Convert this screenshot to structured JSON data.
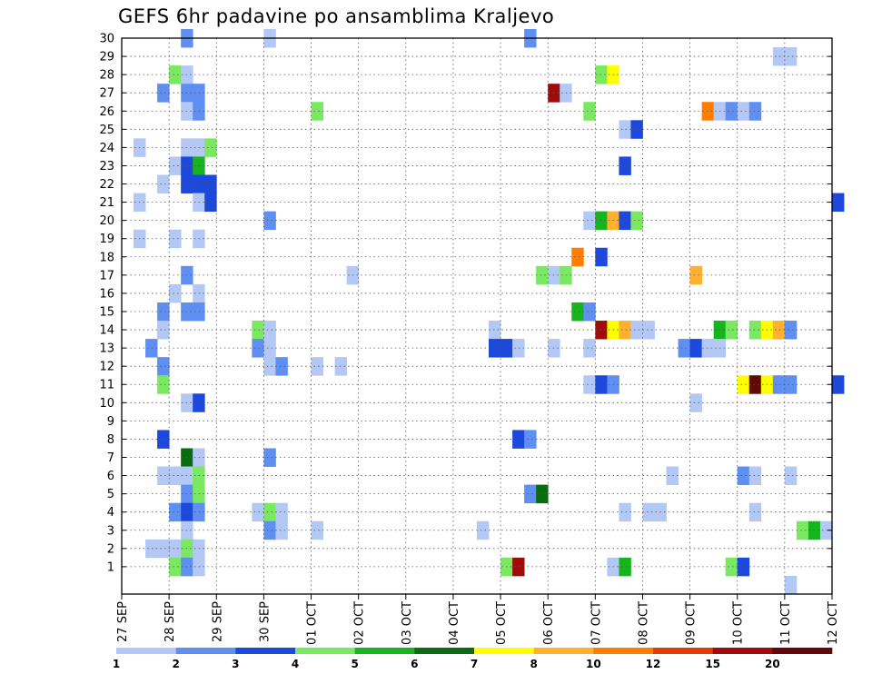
{
  "chart_data": {
    "type": "heatmap",
    "title": "GEFS 6hr padavine po ansamblima Kraljevo",
    "xlabel": "",
    "ylabel": "",
    "x_ticks": [
      "27 SEP",
      "28 SEP",
      "29 SEP",
      "30 SEP",
      "01 OCT",
      "02 OCT",
      "03 OCT",
      "04 OCT",
      "05 OCT",
      "06 OCT",
      "07 OCT",
      "08 OCT",
      "09 OCT",
      "10 OCT",
      "11 OCT",
      "12 OCT"
    ],
    "y_ticks": [
      "1",
      "2",
      "3",
      "4",
      "5",
      "6",
      "7",
      "8",
      "9",
      "10",
      "11",
      "12",
      "13",
      "14",
      "15",
      "16",
      "17",
      "18",
      "19",
      "20",
      "21",
      "22",
      "23",
      "24",
      "25",
      "26",
      "27",
      "28",
      "29",
      "30"
    ],
    "grid": true,
    "colorbar": {
      "bounds": [
        "1",
        "2",
        "3",
        "4",
        "5",
        "6",
        "7",
        "8",
        "10",
        "12",
        "15",
        "20"
      ],
      "colors": [
        "#b4c8f5",
        "#5f8ff0",
        "#1c48dc",
        "#7ae860",
        "#16b51d",
        "#0b6b10",
        "#ffff00",
        "#ffb02f",
        "#ff7d00",
        "#e43c00",
        "#a00c0c",
        "#620808"
      ]
    },
    "units": "each cell = one 6-hour step (4 per day) for one ensemble member; value = color class index 0-11",
    "cells": [
      [
        30,
        5,
        1
      ],
      [
        30,
        12,
        0
      ],
      [
        30,
        34,
        1
      ],
      [
        29,
        55,
        0
      ],
      [
        29,
        56,
        0
      ],
      [
        28,
        4,
        3
      ],
      [
        28,
        5,
        0
      ],
      [
        28,
        40,
        3
      ],
      [
        28,
        41,
        6
      ],
      [
        27,
        3,
        1
      ],
      [
        27,
        5,
        1
      ],
      [
        27,
        6,
        1
      ],
      [
        27,
        36,
        10
      ],
      [
        27,
        37,
        0
      ],
      [
        26,
        5,
        0
      ],
      [
        26,
        6,
        1
      ],
      [
        26,
        16,
        3
      ],
      [
        26,
        39,
        3
      ],
      [
        26,
        49,
        8
      ],
      [
        26,
        50,
        0
      ],
      [
        26,
        51,
        1
      ],
      [
        26,
        52,
        0
      ],
      [
        26,
        53,
        1
      ],
      [
        25,
        42,
        0
      ],
      [
        25,
        43,
        2
      ],
      [
        24,
        1,
        0
      ],
      [
        24,
        5,
        0
      ],
      [
        24,
        6,
        0
      ],
      [
        24,
        7,
        3
      ],
      [
        23,
        4,
        0
      ],
      [
        23,
        5,
        2
      ],
      [
        23,
        6,
        4
      ],
      [
        23,
        42,
        2
      ],
      [
        22,
        3,
        0
      ],
      [
        22,
        5,
        2
      ],
      [
        22,
        6,
        2
      ],
      [
        22,
        7,
        2
      ],
      [
        21,
        1,
        0
      ],
      [
        21,
        6,
        0
      ],
      [
        21,
        7,
        2
      ],
      [
        21,
        60,
        2
      ],
      [
        20,
        12,
        1
      ],
      [
        20,
        39,
        0
      ],
      [
        20,
        40,
        4
      ],
      [
        20,
        41,
        7
      ],
      [
        20,
        42,
        2
      ],
      [
        20,
        43,
        3
      ],
      [
        19,
        1,
        0
      ],
      [
        19,
        4,
        0
      ],
      [
        19,
        6,
        0
      ],
      [
        18,
        38,
        8
      ],
      [
        18,
        40,
        2
      ],
      [
        17,
        5,
        1
      ],
      [
        17,
        19,
        0
      ],
      [
        17,
        35,
        3
      ],
      [
        17,
        36,
        0
      ],
      [
        17,
        37,
        3
      ],
      [
        17,
        48,
        7
      ],
      [
        16,
        4,
        0
      ],
      [
        16,
        6,
        0
      ],
      [
        15,
        3,
        1
      ],
      [
        15,
        5,
        1
      ],
      [
        15,
        6,
        1
      ],
      [
        15,
        38,
        4
      ],
      [
        15,
        39,
        1
      ],
      [
        14,
        3,
        0
      ],
      [
        14,
        11,
        3
      ],
      [
        14,
        12,
        0
      ],
      [
        14,
        31,
        0
      ],
      [
        14,
        40,
        10
      ],
      [
        14,
        41,
        6
      ],
      [
        14,
        42,
        7
      ],
      [
        14,
        43,
        0
      ],
      [
        14,
        44,
        0
      ],
      [
        14,
        50,
        4
      ],
      [
        14,
        51,
        3
      ],
      [
        14,
        53,
        3
      ],
      [
        14,
        54,
        6
      ],
      [
        14,
        55,
        7
      ],
      [
        14,
        56,
        1
      ],
      [
        13,
        2,
        1
      ],
      [
        13,
        11,
        1
      ],
      [
        13,
        12,
        0
      ],
      [
        13,
        31,
        2
      ],
      [
        13,
        32,
        2
      ],
      [
        13,
        33,
        0
      ],
      [
        13,
        36,
        0
      ],
      [
        13,
        39,
        0
      ],
      [
        13,
        47,
        1
      ],
      [
        13,
        48,
        2
      ],
      [
        13,
        49,
        0
      ],
      [
        13,
        50,
        0
      ],
      [
        12,
        3,
        1
      ],
      [
        12,
        12,
        0
      ],
      [
        12,
        13,
        1
      ],
      [
        12,
        16,
        0
      ],
      [
        12,
        18,
        0
      ],
      [
        11,
        3,
        3
      ],
      [
        11,
        39,
        0
      ],
      [
        11,
        40,
        2
      ],
      [
        11,
        41,
        1
      ],
      [
        11,
        52,
        6
      ],
      [
        11,
        53,
        11
      ],
      [
        11,
        54,
        6
      ],
      [
        11,
        55,
        1
      ],
      [
        11,
        56,
        1
      ],
      [
        11,
        60,
        2
      ],
      [
        10,
        5,
        0
      ],
      [
        10,
        6,
        2
      ],
      [
        10,
        48,
        0
      ],
      [
        8,
        3,
        2
      ],
      [
        8,
        33,
        2
      ],
      [
        8,
        34,
        1
      ],
      [
        7,
        5,
        5
      ],
      [
        7,
        6,
        0
      ],
      [
        7,
        12,
        1
      ],
      [
        6,
        3,
        0
      ],
      [
        6,
        4,
        0
      ],
      [
        6,
        5,
        0
      ],
      [
        6,
        6,
        3
      ],
      [
        6,
        46,
        0
      ],
      [
        6,
        52,
        1
      ],
      [
        6,
        53,
        0
      ],
      [
        6,
        56,
        0
      ],
      [
        5,
        5,
        1
      ],
      [
        5,
        6,
        3
      ],
      [
        5,
        34,
        1
      ],
      [
        5,
        35,
        5
      ],
      [
        4,
        4,
        1
      ],
      [
        4,
        5,
        2
      ],
      [
        4,
        6,
        1
      ],
      [
        4,
        11,
        0
      ],
      [
        4,
        12,
        3
      ],
      [
        4,
        13,
        0
      ],
      [
        4,
        42,
        0
      ],
      [
        4,
        44,
        0
      ],
      [
        4,
        45,
        0
      ],
      [
        4,
        53,
        0
      ],
      [
        3,
        5,
        0
      ],
      [
        3,
        12,
        1
      ],
      [
        3,
        13,
        0
      ],
      [
        3,
        16,
        0
      ],
      [
        3,
        30,
        0
      ],
      [
        3,
        57,
        3
      ],
      [
        3,
        58,
        4
      ],
      [
        3,
        59,
        0
      ],
      [
        2,
        2,
        0
      ],
      [
        2,
        3,
        0
      ],
      [
        2,
        4,
        0
      ],
      [
        2,
        5,
        3
      ],
      [
        2,
        6,
        0
      ],
      [
        1,
        4,
        3
      ],
      [
        1,
        5,
        1
      ],
      [
        1,
        6,
        0
      ],
      [
        1,
        32,
        3
      ],
      [
        1,
        33,
        10
      ],
      [
        1,
        41,
        0
      ],
      [
        1,
        42,
        4
      ],
      [
        1,
        51,
        3
      ],
      [
        1,
        52,
        2
      ],
      [
        0,
        56,
        0
      ]
    ]
  }
}
